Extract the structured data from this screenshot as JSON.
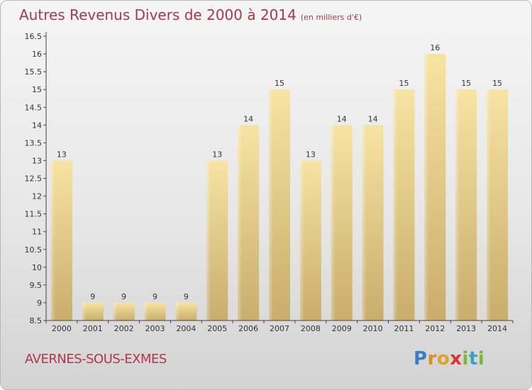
{
  "title": "Autres Revenus Divers de 2000 à 2014",
  "unit": "(en milliers d'€)",
  "commune": "AVERNES-SOUS-EXMES",
  "logo": {
    "letters": [
      "P",
      "r",
      "o",
      "x",
      "i",
      "t",
      "i"
    ],
    "colors": [
      "#3a7fc4",
      "#e08a25",
      "#e0a325",
      "#d6362e",
      "#7bb53a",
      "#3aa0c4",
      "#7bb53a"
    ]
  },
  "chart_data": {
    "type": "bar",
    "categories": [
      "2000",
      "2001",
      "2002",
      "2003",
      "2004",
      "2005",
      "2006",
      "2007",
      "2008",
      "2009",
      "2010",
      "2011",
      "2012",
      "2013",
      "2014"
    ],
    "values": [
      13,
      9,
      9,
      9,
      9,
      13,
      14,
      15,
      13,
      14,
      14,
      15,
      16,
      15,
      15
    ],
    "data_labels": [
      "13",
      "9",
      "9",
      "9",
      "9",
      "13",
      "14",
      "15",
      "13",
      "14",
      "14",
      "15",
      "16",
      "15",
      "15"
    ],
    "ylim": [
      8.5,
      16.5
    ],
    "yticks": [
      8.5,
      9,
      9.5,
      10,
      10.5,
      11,
      11.5,
      12,
      12.5,
      13,
      13.5,
      14,
      14.5,
      15,
      15.5,
      16,
      16.5
    ],
    "ytick_labels": [
      "8.5",
      "9",
      "9.5",
      "10",
      "10.5",
      "11",
      "11.5",
      "12",
      "12.5",
      "13",
      "13.5",
      "14",
      "14.5",
      "15",
      "15.5",
      "16",
      "16.5"
    ],
    "bar_color": "#e8cf8a",
    "grid": false,
    "xlabel": "",
    "ylabel": ""
  }
}
